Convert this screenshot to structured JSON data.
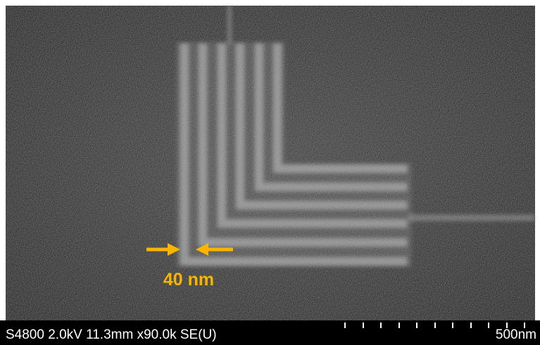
{
  "annotation": {
    "label": "40 nm"
  },
  "info_bar": {
    "text": "S4800 2.0kV 11.3mm x90.0k SE(U)",
    "scale_label": "500nm"
  }
}
